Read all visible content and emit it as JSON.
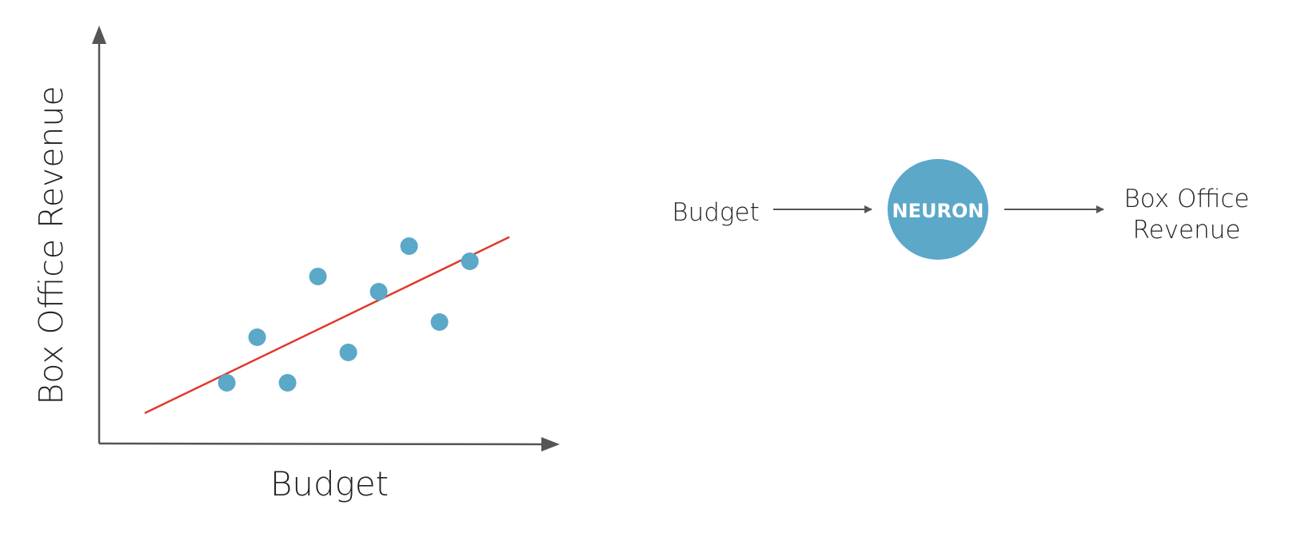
{
  "chart_data": {
    "type": "scatter",
    "xlabel": "Budget",
    "ylabel": "Box Office Revenue",
    "points": [
      {
        "x": 4.2,
        "y": 2.0
      },
      {
        "x": 5.2,
        "y": 3.5
      },
      {
        "x": 6.2,
        "y": 2.0
      },
      {
        "x": 7.2,
        "y": 5.5
      },
      {
        "x": 8.2,
        "y": 3.0
      },
      {
        "x": 9.2,
        "y": 5.0
      },
      {
        "x": 10.2,
        "y": 6.5
      },
      {
        "x": 11.2,
        "y": 4.0
      },
      {
        "x": 12.2,
        "y": 6.0
      }
    ],
    "fit_line": {
      "x": [
        1.5,
        13.5
      ],
      "y": [
        1.0,
        6.8
      ]
    },
    "xlim": [
      0,
      15
    ],
    "ylim": [
      0,
      13.5
    ],
    "colors": {
      "points": "#5ba8c9",
      "fit_line": "#e0392d",
      "axes": "#555555"
    }
  },
  "diagram": {
    "input_label": "Budget",
    "node_label": "NEURON",
    "output_label_lines": [
      "Box Office",
      "Revenue"
    ],
    "colors": {
      "node": "#5ba8c9",
      "arrows": "#555555"
    }
  }
}
